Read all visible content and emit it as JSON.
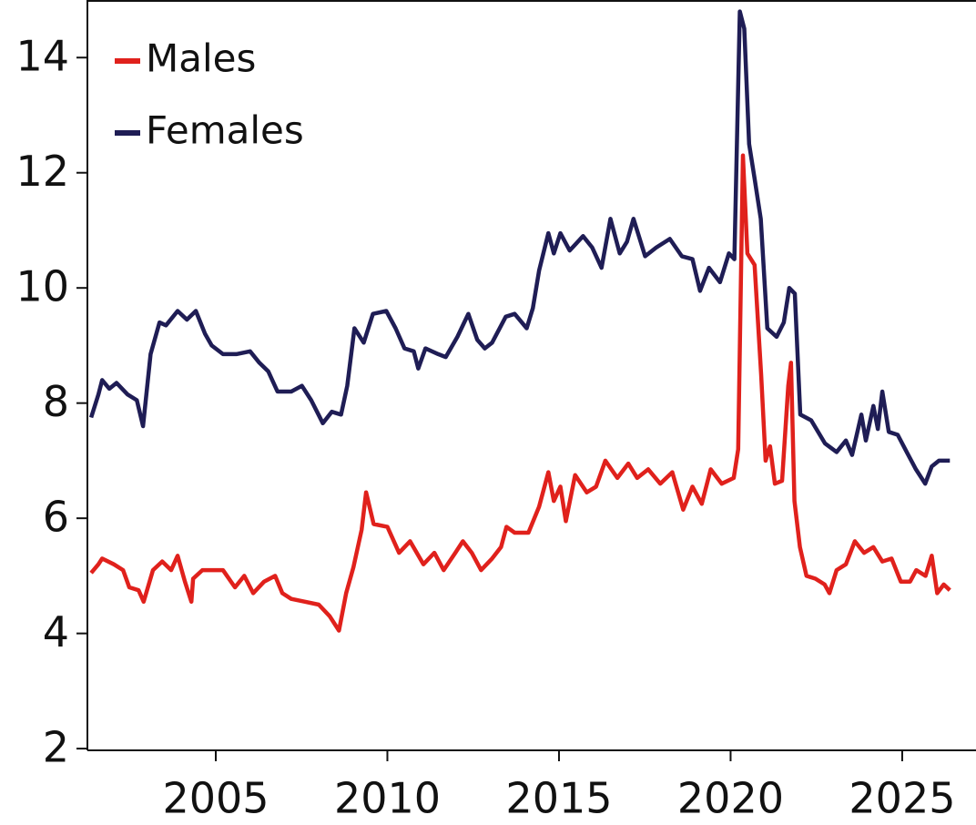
{
  "chart_data": {
    "type": "line",
    "xlim": [
      2001.26,
      2027.15
    ],
    "ylim": [
      1.97,
      15.0
    ],
    "xticks": [
      2005,
      2010,
      2015,
      2020,
      2025
    ],
    "yticks": [
      2,
      4,
      6,
      8,
      10,
      12,
      14
    ],
    "legend": "upper left",
    "series": [
      {
        "name": "Males",
        "color": "#e0211c",
        "x": [
          2001.37,
          2001.58,
          2001.69,
          2002.03,
          2002.3,
          2002.48,
          2002.75,
          2002.9,
          2003.17,
          2003.44,
          2003.7,
          2003.89,
          2004.1,
          2004.29,
          2004.34,
          2004.61,
          2004.87,
          2005.21,
          2005.56,
          2005.83,
          2006.09,
          2006.41,
          2006.73,
          2006.94,
          2007.2,
          2007.6,
          2008.0,
          2008.32,
          2008.59,
          2008.8,
          2009.01,
          2009.25,
          2009.38,
          2009.6,
          2010.0,
          2010.34,
          2010.66,
          2011.05,
          2011.37,
          2011.64,
          2011.98,
          2012.2,
          2012.46,
          2012.73,
          2013.05,
          2013.31,
          2013.47,
          2013.71,
          2014.11,
          2014.42,
          2014.69,
          2014.85,
          2015.04,
          2015.2,
          2015.47,
          2015.81,
          2016.08,
          2016.35,
          2016.7,
          2017.02,
          2017.28,
          2017.6,
          2017.95,
          2018.3,
          2018.62,
          2018.89,
          2019.16,
          2019.42,
          2019.74,
          2020.09,
          2020.22,
          2020.36,
          2020.49,
          2020.7,
          2020.89,
          2021.02,
          2021.15,
          2021.29,
          2021.5,
          2021.68,
          2021.76,
          2021.86,
          2022.02,
          2022.21,
          2022.47,
          2022.74,
          2022.88,
          2023.09,
          2023.36,
          2023.62,
          2023.89,
          2024.16,
          2024.42,
          2024.69,
          2024.96,
          2025.23,
          2025.41,
          2025.68,
          2025.86,
          2026.02,
          2026.21,
          2026.39
        ],
        "values": [
          5.05,
          5.2,
          5.3,
          5.2,
          5.1,
          4.8,
          4.75,
          4.55,
          5.1,
          5.25,
          5.1,
          5.35,
          4.9,
          4.55,
          4.95,
          5.1,
          5.1,
          5.1,
          4.8,
          5.0,
          4.7,
          4.9,
          5.0,
          4.7,
          4.6,
          4.55,
          4.5,
          4.3,
          4.05,
          4.7,
          5.15,
          5.8,
          6.45,
          5.9,
          5.85,
          5.4,
          5.6,
          5.2,
          5.4,
          5.1,
          5.4,
          5.6,
          5.4,
          5.1,
          5.3,
          5.5,
          5.85,
          5.75,
          5.75,
          6.2,
          6.8,
          6.3,
          6.55,
          5.95,
          6.75,
          6.45,
          6.55,
          7.0,
          6.7,
          6.95,
          6.7,
          6.85,
          6.6,
          6.8,
          6.15,
          6.55,
          6.25,
          6.85,
          6.6,
          6.7,
          7.2,
          12.3,
          10.6,
          10.4,
          8.5,
          7.0,
          7.25,
          6.6,
          6.65,
          8.3,
          8.7,
          6.3,
          5.5,
          5.0,
          4.95,
          4.85,
          4.7,
          5.1,
          5.2,
          5.6,
          5.4,
          5.5,
          5.25,
          5.3,
          4.9,
          4.9,
          5.1,
          5.0,
          5.35,
          4.7,
          4.85,
          4.75
        ]
      },
      {
        "name": "Females",
        "color": "#1f1d55",
        "x": [
          2001.37,
          2001.58,
          2001.69,
          2001.9,
          2002.11,
          2002.43,
          2002.7,
          2002.88,
          2003.1,
          2003.36,
          2003.55,
          2003.89,
          2004.16,
          2004.42,
          2004.69,
          2004.88,
          2005.21,
          2005.6,
          2006.0,
          2006.27,
          2006.53,
          2006.8,
          2007.2,
          2007.51,
          2007.78,
          2008.12,
          2008.38,
          2008.65,
          2008.83,
          2009.04,
          2009.31,
          2009.58,
          2009.97,
          2010.24,
          2010.5,
          2010.77,
          2010.9,
          2011.11,
          2011.48,
          2011.7,
          2012.04,
          2012.36,
          2012.62,
          2012.84,
          2013.05,
          2013.45,
          2013.71,
          2014.06,
          2014.24,
          2014.42,
          2014.69,
          2014.85,
          2015.04,
          2015.31,
          2015.7,
          2015.97,
          2016.24,
          2016.5,
          2016.77,
          2016.98,
          2017.17,
          2017.51,
          2017.83,
          2018.23,
          2018.58,
          2018.89,
          2019.11,
          2019.37,
          2019.69,
          2019.95,
          2020.11,
          2020.27,
          2020.4,
          2020.54,
          2020.7,
          2020.88,
          2021.07,
          2021.34,
          2021.55,
          2021.71,
          2021.87,
          2022.03,
          2022.35,
          2022.75,
          2023.09,
          2023.36,
          2023.54,
          2023.81,
          2023.94,
          2024.16,
          2024.29,
          2024.42,
          2024.61,
          2024.87,
          2025.13,
          2025.4,
          2025.67,
          2025.86,
          2026.07,
          2026.39
        ],
        "values": [
          7.75,
          8.15,
          8.4,
          8.25,
          8.35,
          8.15,
          8.05,
          7.6,
          8.85,
          9.4,
          9.35,
          9.6,
          9.45,
          9.6,
          9.2,
          9.0,
          8.85,
          8.85,
          8.9,
          8.7,
          8.55,
          8.2,
          8.2,
          8.3,
          8.05,
          7.65,
          7.85,
          7.8,
          8.3,
          9.3,
          9.05,
          9.55,
          9.6,
          9.3,
          8.95,
          8.9,
          8.6,
          8.95,
          8.85,
          8.8,
          9.15,
          9.55,
          9.1,
          8.95,
          9.05,
          9.5,
          9.55,
          9.3,
          9.65,
          10.3,
          10.95,
          10.6,
          10.95,
          10.65,
          10.9,
          10.7,
          10.35,
          11.2,
          10.6,
          10.8,
          11.2,
          10.55,
          10.7,
          10.85,
          10.55,
          10.5,
          9.95,
          10.35,
          10.1,
          10.6,
          10.5,
          14.8,
          14.5,
          12.5,
          11.9,
          11.2,
          9.3,
          9.15,
          9.4,
          10.0,
          9.9,
          7.8,
          7.7,
          7.3,
          7.15,
          7.35,
          7.1,
          7.8,
          7.35,
          7.95,
          7.55,
          8.2,
          7.5,
          7.45,
          7.15,
          6.85,
          6.6,
          6.9,
          7.0,
          7.0
        ]
      }
    ]
  }
}
